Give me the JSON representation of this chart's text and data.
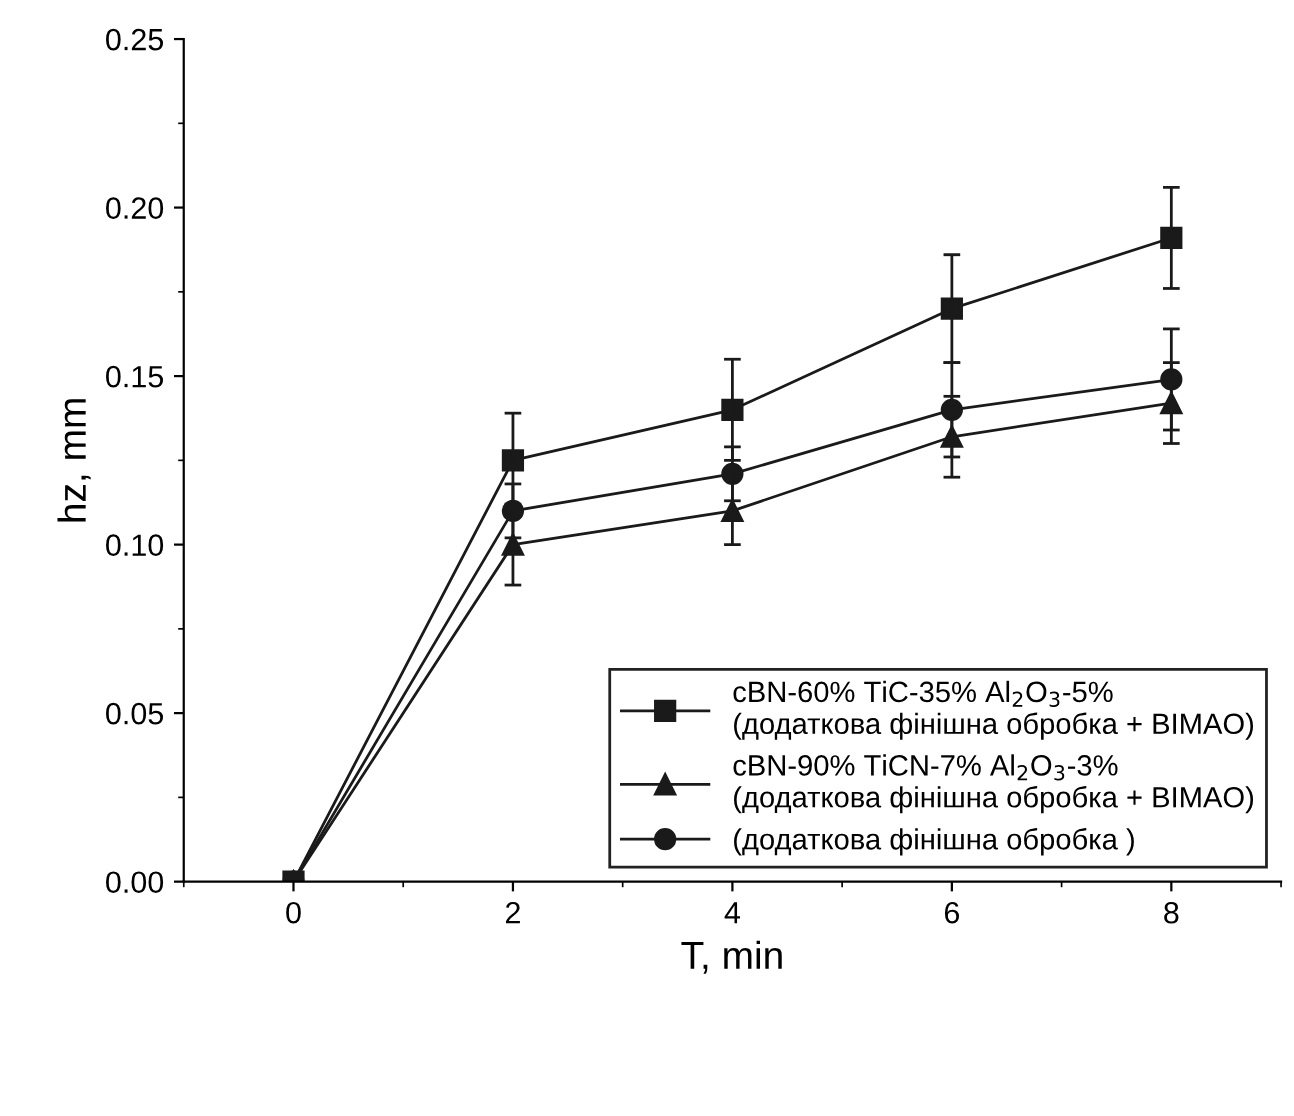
{
  "chart_data": {
    "type": "line",
    "xlabel": "T, min",
    "ylabel": "hz, mm",
    "x": [
      0,
      2,
      4,
      6,
      8
    ],
    "series": [
      {
        "name": "cBN-60% TiC-35% Al$_{2}$O$_{3}$-5%\n(додаткова фінішна обробка + BIMAO)",
        "color": "#1a1a1a",
        "marker": "square",
        "values": [
          0,
          0.125,
          0.14,
          0.17,
          0.191
        ],
        "errors": [
          null,
          0.014,
          0.015,
          0.016,
          0.015
        ]
      },
      {
        "name": "cBN-90% TiCN-7% Al$_{2}$O$_{3}$-3%\n(додаткова фінішна обробка + BIMAO)",
        "color": "#1a1a1a",
        "marker": "triangle",
        "values": [
          0,
          0.1,
          0.11,
          0.132,
          0.142
        ],
        "errors": [
          null,
          0.012,
          0.01,
          0.012,
          0.012
        ]
      },
      {
        "name": "(додаткова фінішна обробка )",
        "color": "#1a1a1a",
        "marker": "circle",
        "values": [
          0,
          0.11,
          0.121,
          0.14,
          0.149
        ],
        "errors": [
          null,
          0.008,
          0.008,
          0.014,
          0.015
        ]
      }
    ],
    "xlim": [
      -1,
      9
    ],
    "ylim": [
      0,
      0.25
    ],
    "xticks": [
      0,
      2,
      4,
      6,
      8
    ],
    "yticks": [
      {
        "value": 0,
        "label": "0.00"
      },
      {
        "value": 0.05,
        "label": "0.05"
      },
      {
        "value": 0.1,
        "label": "0.10"
      },
      {
        "value": 0.15,
        "label": "0.15"
      },
      {
        "value": 0.2,
        "label": "0.20"
      },
      {
        "value": 0.25,
        "label": "0.25"
      }
    ],
    "grid": false,
    "legend": "bottom right",
    "line_style": "solid"
  }
}
